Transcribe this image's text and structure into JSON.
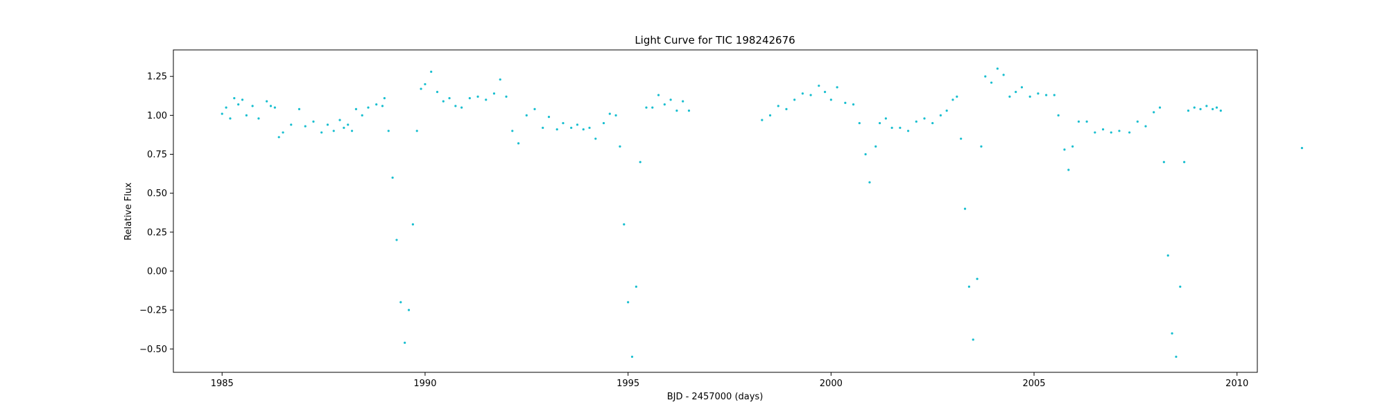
{
  "chart_data": {
    "type": "scatter",
    "title": "Light Curve for TIC 198242676",
    "xlabel": "BJD - 2457000 (days)",
    "ylabel": "Relative Flux",
    "xlim": [
      1983.8,
      2010.5
    ],
    "ylim": [
      -0.65,
      1.42
    ],
    "xticks": [
      1985,
      1990,
      1995,
      2000,
      2005,
      2010
    ],
    "xtick_labels": [
      "1985",
      "1990",
      "1995",
      "2000",
      "2005",
      "2010"
    ],
    "yticks": [
      -0.5,
      -0.25,
      0.0,
      0.25,
      0.5,
      0.75,
      1.0,
      1.25
    ],
    "ytick_labels": [
      "−0.50",
      "−0.25",
      "0.00",
      "0.25",
      "0.50",
      "0.75",
      "1.00",
      "1.25"
    ],
    "grid": false,
    "color": "#17becf",
    "series": [
      {
        "points": [
          [
            1985.0,
            1.01
          ],
          [
            1985.1,
            1.05
          ],
          [
            1985.2,
            0.98
          ],
          [
            1985.3,
            1.11
          ],
          [
            1985.4,
            1.07
          ],
          [
            1985.5,
            1.1
          ],
          [
            1985.6,
            1.0
          ],
          [
            1985.75,
            1.06
          ],
          [
            1985.9,
            0.98
          ],
          [
            1986.1,
            1.09
          ],
          [
            1986.2,
            1.06
          ],
          [
            1986.3,
            1.05
          ],
          [
            1986.4,
            0.86
          ],
          [
            1986.5,
            0.89
          ],
          [
            1986.7,
            0.94
          ],
          [
            1986.9,
            1.04
          ],
          [
            1987.05,
            0.93
          ],
          [
            1987.25,
            0.96
          ],
          [
            1987.45,
            0.89
          ],
          [
            1987.6,
            0.94
          ],
          [
            1987.75,
            0.9
          ],
          [
            1987.9,
            0.97
          ],
          [
            1988.0,
            0.92
          ],
          [
            1988.1,
            0.94
          ],
          [
            1988.2,
            0.9
          ],
          [
            1988.3,
            1.04
          ],
          [
            1988.45,
            1.0
          ],
          [
            1988.6,
            1.05
          ],
          [
            1988.8,
            1.07
          ],
          [
            1988.95,
            1.06
          ],
          [
            1989.0,
            1.11
          ],
          [
            1989.1,
            0.9
          ],
          [
            1989.2,
            0.6
          ],
          [
            1989.3,
            0.2
          ],
          [
            1989.4,
            -0.2
          ],
          [
            1989.5,
            -0.46
          ],
          [
            1989.6,
            -0.25
          ],
          [
            1989.7,
            0.3
          ],
          [
            1989.8,
            0.9
          ],
          [
            1989.9,
            1.17
          ],
          [
            1990.0,
            1.2
          ],
          [
            1990.15,
            1.28
          ],
          [
            1990.3,
            1.15
          ],
          [
            1990.45,
            1.09
          ],
          [
            1990.6,
            1.11
          ],
          [
            1990.75,
            1.06
          ],
          [
            1990.9,
            1.05
          ],
          [
            1991.1,
            1.11
          ],
          [
            1991.3,
            1.12
          ],
          [
            1991.5,
            1.1
          ],
          [
            1991.7,
            1.14
          ],
          [
            1991.85,
            1.23
          ],
          [
            1992.0,
            1.12
          ],
          [
            1992.15,
            0.9
          ],
          [
            1992.3,
            0.82
          ],
          [
            1992.5,
            1.0
          ],
          [
            1992.7,
            1.04
          ],
          [
            1992.9,
            0.92
          ],
          [
            1993.05,
            0.99
          ],
          [
            1993.25,
            0.91
          ],
          [
            1993.4,
            0.95
          ],
          [
            1993.6,
            0.92
          ],
          [
            1993.75,
            0.94
          ],
          [
            1993.9,
            0.91
          ],
          [
            1994.05,
            0.92
          ],
          [
            1994.2,
            0.85
          ],
          [
            1994.4,
            0.95
          ],
          [
            1994.55,
            1.01
          ],
          [
            1994.7,
            1.0
          ],
          [
            1994.8,
            0.8
          ],
          [
            1994.9,
            0.3
          ],
          [
            1995.0,
            -0.2
          ],
          [
            1995.1,
            -0.55
          ],
          [
            1995.2,
            -0.1
          ],
          [
            1995.3,
            0.7
          ],
          [
            1995.45,
            1.05
          ],
          [
            1995.6,
            1.05
          ],
          [
            1995.75,
            1.13
          ],
          [
            1995.9,
            1.07
          ],
          [
            1996.05,
            1.1
          ],
          [
            1996.2,
            1.03
          ],
          [
            1996.35,
            1.09
          ],
          [
            1996.5,
            1.03
          ],
          [
            1998.3,
            0.97
          ],
          [
            1998.5,
            1.0
          ],
          [
            1998.7,
            1.06
          ],
          [
            1998.9,
            1.04
          ],
          [
            1999.1,
            1.1
          ],
          [
            1999.3,
            1.14
          ],
          [
            1999.5,
            1.13
          ],
          [
            1999.7,
            1.19
          ],
          [
            1999.85,
            1.15
          ],
          [
            2000.0,
            1.1
          ],
          [
            2000.15,
            1.18
          ],
          [
            2000.35,
            1.08
          ],
          [
            2000.55,
            1.07
          ],
          [
            2000.7,
            0.95
          ],
          [
            2000.85,
            0.75
          ],
          [
            2000.95,
            0.57
          ],
          [
            2001.1,
            0.8
          ],
          [
            2001.2,
            0.95
          ],
          [
            2001.35,
            0.98
          ],
          [
            2001.5,
            0.92
          ],
          [
            2001.7,
            0.92
          ],
          [
            2001.9,
            0.9
          ],
          [
            2002.1,
            0.96
          ],
          [
            2002.3,
            0.98
          ],
          [
            2002.5,
            0.95
          ],
          [
            2002.7,
            1.0
          ],
          [
            2002.85,
            1.03
          ],
          [
            2003.0,
            1.1
          ],
          [
            2003.1,
            1.12
          ],
          [
            2003.2,
            0.85
          ],
          [
            2003.3,
            0.4
          ],
          [
            2003.4,
            -0.1
          ],
          [
            2003.5,
            -0.44
          ],
          [
            2003.6,
            -0.05
          ],
          [
            2003.7,
            0.8
          ],
          [
            2003.8,
            1.25
          ],
          [
            2003.95,
            1.21
          ],
          [
            2004.1,
            1.3
          ],
          [
            2004.25,
            1.26
          ],
          [
            2004.4,
            1.12
          ],
          [
            2004.55,
            1.15
          ],
          [
            2004.7,
            1.18
          ],
          [
            2004.9,
            1.12
          ],
          [
            2005.1,
            1.14
          ],
          [
            2005.3,
            1.13
          ],
          [
            2005.5,
            1.13
          ],
          [
            2005.6,
            1.0
          ],
          [
            2005.75,
            0.78
          ],
          [
            2005.85,
            0.65
          ],
          [
            2005.95,
            0.8
          ],
          [
            2006.1,
            0.96
          ],
          [
            2006.3,
            0.96
          ],
          [
            2006.5,
            0.89
          ],
          [
            2006.7,
            0.91
          ],
          [
            2006.9,
            0.89
          ],
          [
            2007.1,
            0.9
          ],
          [
            2007.35,
            0.89
          ],
          [
            2007.55,
            0.96
          ],
          [
            2007.75,
            0.93
          ],
          [
            2007.95,
            1.02
          ],
          [
            2008.1,
            1.05
          ],
          [
            2008.2,
            0.7
          ],
          [
            2008.3,
            0.1
          ],
          [
            2008.4,
            -0.4
          ],
          [
            2008.5,
            -0.55
          ],
          [
            2008.6,
            -0.1
          ],
          [
            2008.7,
            0.7
          ],
          [
            2008.8,
            1.03
          ],
          [
            2008.95,
            1.05
          ],
          [
            2009.1,
            1.04
          ],
          [
            2009.25,
            1.06
          ],
          [
            2009.4,
            1.04
          ],
          [
            2009.5,
            1.05
          ],
          [
            2009.6,
            1.03
          ],
          [
            2011.6,
            0.79
          ]
        ]
      }
    ]
  }
}
